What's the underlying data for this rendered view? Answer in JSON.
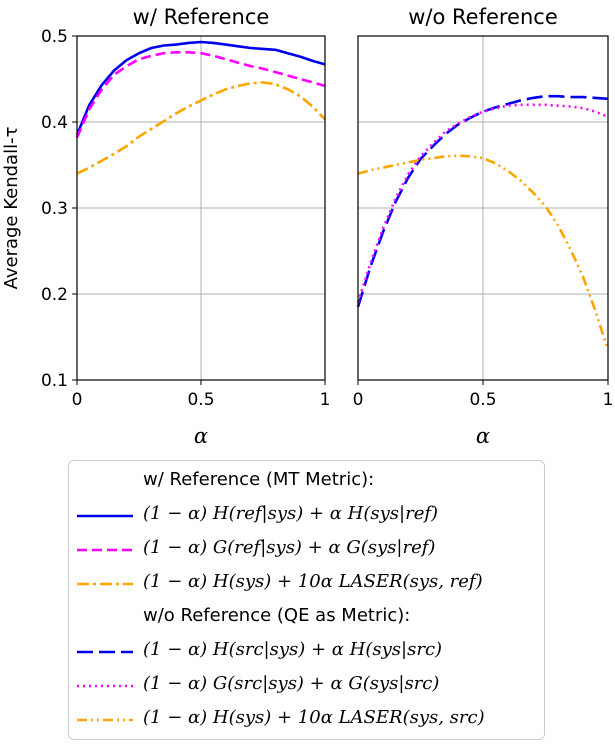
{
  "chart_data": [
    {
      "type": "line",
      "title": "w/ Reference",
      "xlabel": "α",
      "ylabel": "Average Kendall-τ",
      "xlim": [
        0,
        1
      ],
      "ylim": [
        0.1,
        0.5
      ],
      "xticks": [
        "0",
        "0.5",
        "1"
      ],
      "yticks": [
        "0.1",
        "0.2",
        "0.3",
        "0.4",
        "0.5"
      ],
      "grid": true,
      "series": [
        {
          "name": "(1 − α) H(ref|sys) + α H(sys|ref)",
          "color": "#0000ee",
          "style": "solid",
          "x": [
            0,
            0.05,
            0.1,
            0.15,
            0.2,
            0.25,
            0.3,
            0.35,
            0.4,
            0.45,
            0.5,
            0.55,
            0.6,
            0.65,
            0.7,
            0.75,
            0.8,
            0.85,
            0.9,
            0.95,
            1.0
          ],
          "y": [
            0.385,
            0.42,
            0.443,
            0.46,
            0.472,
            0.48,
            0.486,
            0.489,
            0.49,
            0.492,
            0.493,
            0.492,
            0.49,
            0.488,
            0.486,
            0.485,
            0.484,
            0.48,
            0.476,
            0.471,
            0.467
          ]
        },
        {
          "name": "(1 − α) G(ref|sys) + α G(sys|ref)",
          "color": "#ff00ff",
          "style": "dashed",
          "x": [
            0,
            0.05,
            0.1,
            0.15,
            0.2,
            0.25,
            0.3,
            0.35,
            0.4,
            0.45,
            0.5,
            0.55,
            0.6,
            0.65,
            0.7,
            0.75,
            0.8,
            0.85,
            0.9,
            0.95,
            1.0
          ],
          "y": [
            0.382,
            0.415,
            0.438,
            0.455,
            0.465,
            0.473,
            0.477,
            0.48,
            0.481,
            0.481,
            0.48,
            0.477,
            0.473,
            0.469,
            0.465,
            0.462,
            0.458,
            0.454,
            0.45,
            0.446,
            0.442
          ]
        },
        {
          "name": "(1 − α) H(sys) + 10α LASER(sys, ref)",
          "color": "#ffa500",
          "style": "dashdot",
          "x": [
            0,
            0.05,
            0.1,
            0.15,
            0.2,
            0.25,
            0.3,
            0.35,
            0.4,
            0.45,
            0.5,
            0.55,
            0.6,
            0.65,
            0.7,
            0.75,
            0.8,
            0.85,
            0.9,
            0.95,
            1.0
          ],
          "y": [
            0.34,
            0.347,
            0.355,
            0.363,
            0.372,
            0.383,
            0.392,
            0.401,
            0.41,
            0.418,
            0.425,
            0.432,
            0.438,
            0.442,
            0.445,
            0.446,
            0.444,
            0.438,
            0.43,
            0.418,
            0.403
          ]
        }
      ]
    },
    {
      "type": "line",
      "title": "w/o Reference",
      "xlabel": "α",
      "ylabel": "",
      "xlim": [
        0,
        1
      ],
      "ylim": [
        0.1,
        0.5
      ],
      "xticks": [
        "0",
        "0.5",
        "1"
      ],
      "yticks": [],
      "grid": true,
      "series": [
        {
          "name": "(1 − α) H(src|sys) + α H(sys|src)",
          "color": "#0000ee",
          "style": "longdash",
          "x": [
            0,
            0.05,
            0.1,
            0.15,
            0.2,
            0.25,
            0.3,
            0.35,
            0.4,
            0.45,
            0.5,
            0.55,
            0.6,
            0.65,
            0.7,
            0.75,
            0.8,
            0.85,
            0.9,
            0.95,
            1.0
          ],
          "y": [
            0.185,
            0.232,
            0.272,
            0.307,
            0.335,
            0.357,
            0.372,
            0.386,
            0.397,
            0.405,
            0.412,
            0.417,
            0.421,
            0.425,
            0.428,
            0.43,
            0.43,
            0.429,
            0.429,
            0.428,
            0.427
          ]
        },
        {
          "name": "(1 − α) G(src|sys) + α G(sys|src)",
          "color": "#ff00ff",
          "style": "dotted",
          "x": [
            0,
            0.05,
            0.1,
            0.15,
            0.2,
            0.25,
            0.3,
            0.35,
            0.4,
            0.45,
            0.5,
            0.55,
            0.6,
            0.65,
            0.7,
            0.75,
            0.8,
            0.85,
            0.9,
            0.95,
            1.0
          ],
          "y": [
            0.19,
            0.236,
            0.276,
            0.311,
            0.339,
            0.36,
            0.375,
            0.389,
            0.398,
            0.406,
            0.412,
            0.416,
            0.419,
            0.42,
            0.42,
            0.42,
            0.419,
            0.418,
            0.416,
            0.412,
            0.406
          ]
        },
        {
          "name": "(1 − α) H(sys) + 10α LASER(sys, src)",
          "color": "#ffa500",
          "style": "dashdotdot",
          "x": [
            0,
            0.05,
            0.1,
            0.15,
            0.2,
            0.25,
            0.3,
            0.35,
            0.4,
            0.45,
            0.5,
            0.55,
            0.6,
            0.65,
            0.7,
            0.75,
            0.8,
            0.85,
            0.9,
            0.95,
            1.0
          ],
          "y": [
            0.34,
            0.344,
            0.347,
            0.35,
            0.353,
            0.356,
            0.358,
            0.36,
            0.361,
            0.36,
            0.358,
            0.352,
            0.343,
            0.332,
            0.318,
            0.302,
            0.28,
            0.252,
            0.22,
            0.18,
            0.135
          ]
        }
      ]
    }
  ],
  "legend": {
    "group_with_ref": "w/ Reference (MT Metric):",
    "group_without_ref": "w/o Reference (QE as Metric):",
    "entries": [
      {
        "text": "(1 − α) H(ref|sys) + α H(sys|ref)",
        "color": "#0000ee",
        "style": "solid"
      },
      {
        "text": "(1 − α) G(ref|sys) + α G(sys|ref)",
        "color": "#ff00ff",
        "style": "dashed"
      },
      {
        "text": "(1 − α) H(sys) + 10α LASER(sys, ref)",
        "color": "#ffa500",
        "style": "dashdot"
      },
      {
        "text": "(1 − α) H(src|sys) + α H(sys|src)",
        "color": "#0000ee",
        "style": "longdash"
      },
      {
        "text": "(1 − α) G(src|sys) + α G(sys|src)",
        "color": "#ff00ff",
        "style": "dotted"
      },
      {
        "text": "(1 − α) H(sys) + 10α LASER(sys, src)",
        "color": "#ffa500",
        "style": "dashdotdot"
      }
    ]
  }
}
